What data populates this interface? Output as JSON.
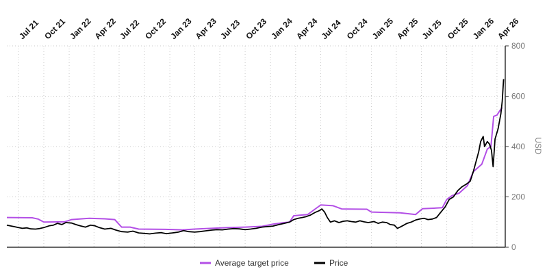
{
  "chart_data": {
    "type": "line",
    "title": "",
    "xlabel": "",
    "ylabel": "USD",
    "x_ticks": [
      "Jul 21",
      "Oct 21",
      "Jan 22",
      "Apr 22",
      "Jul 22",
      "Oct 22",
      "Jan 23",
      "Apr 23",
      "Jul 23",
      "Oct 23",
      "Jan 24",
      "Apr 24",
      "Jul 24",
      "Oct 24",
      "Jan 25",
      "Apr 25",
      "Jul 25",
      "Oct 25",
      "Jan 26",
      "Apr 26"
    ],
    "xlim": [
      "2021-05-20",
      "2026-05-01"
    ],
    "ylim": [
      0,
      800
    ],
    "y_ticks": [
      0,
      200,
      400,
      600,
      800
    ],
    "grid": true,
    "legend": "bottom-center",
    "series": [
      {
        "name": "Average target price",
        "color": "#b34fe6",
        "points": [
          [
            "2021-05-20",
            118
          ],
          [
            "2021-08-20",
            117
          ],
          [
            "2021-09-10",
            112
          ],
          [
            "2021-10-01",
            100
          ],
          [
            "2021-12-15",
            101
          ],
          [
            "2022-01-10",
            110
          ],
          [
            "2022-03-15",
            115
          ],
          [
            "2022-05-10",
            113
          ],
          [
            "2022-06-15",
            110
          ],
          [
            "2022-07-10",
            80
          ],
          [
            "2022-08-10",
            80
          ],
          [
            "2022-09-10",
            72
          ],
          [
            "2022-12-15",
            71
          ],
          [
            "2023-02-15",
            69
          ],
          [
            "2023-04-01",
            72
          ],
          [
            "2023-06-01",
            75
          ],
          [
            "2023-08-01",
            78
          ],
          [
            "2023-10-01",
            80
          ],
          [
            "2023-12-01",
            83
          ],
          [
            "2024-01-10",
            92
          ],
          [
            "2024-02-20",
            98
          ],
          [
            "2024-03-10",
            100
          ],
          [
            "2024-03-25",
            125
          ],
          [
            "2024-04-15",
            127
          ],
          [
            "2024-05-15",
            130
          ],
          [
            "2024-06-15",
            155
          ],
          [
            "2024-07-01",
            168
          ],
          [
            "2024-08-15",
            165
          ],
          [
            "2024-09-15",
            152
          ],
          [
            "2024-12-15",
            151
          ],
          [
            "2025-01-01",
            140
          ],
          [
            "2025-04-15",
            137
          ],
          [
            "2025-06-10",
            130
          ],
          [
            "2025-07-05",
            153
          ],
          [
            "2025-08-15",
            155
          ],
          [
            "2025-09-15",
            157
          ],
          [
            "2025-10-01",
            190
          ],
          [
            "2025-10-20",
            205
          ],
          [
            "2025-11-15",
            215
          ],
          [
            "2025-12-15",
            245
          ],
          [
            "2026-01-05",
            300
          ],
          [
            "2026-02-05",
            330
          ],
          [
            "2026-02-25",
            390
          ],
          [
            "2026-03-10",
            400
          ],
          [
            "2026-03-20",
            520
          ],
          [
            "2026-04-01",
            525
          ],
          [
            "2026-04-10",
            540
          ],
          [
            "2026-04-20",
            555
          ]
        ]
      },
      {
        "name": "Price",
        "color": "#000000",
        "points": [
          [
            "2021-05-20",
            88
          ],
          [
            "2021-06-01",
            85
          ],
          [
            "2021-06-15",
            82
          ],
          [
            "2021-07-01",
            78
          ],
          [
            "2021-07-15",
            75
          ],
          [
            "2021-08-01",
            77
          ],
          [
            "2021-08-15",
            73
          ],
          [
            "2021-09-01",
            72
          ],
          [
            "2021-09-15",
            74
          ],
          [
            "2021-10-01",
            78
          ],
          [
            "2021-10-20",
            85
          ],
          [
            "2021-11-05",
            88
          ],
          [
            "2021-11-20",
            95
          ],
          [
            "2021-12-05",
            90
          ],
          [
            "2021-12-20",
            98
          ],
          [
            "2022-01-10",
            96
          ],
          [
            "2022-01-25",
            90
          ],
          [
            "2022-02-10",
            85
          ],
          [
            "2022-03-01",
            80
          ],
          [
            "2022-03-20",
            88
          ],
          [
            "2022-04-05",
            85
          ],
          [
            "2022-04-20",
            78
          ],
          [
            "2022-05-10",
            72
          ],
          [
            "2022-06-01",
            75
          ],
          [
            "2022-06-20",
            68
          ],
          [
            "2022-07-10",
            62
          ],
          [
            "2022-08-01",
            60
          ],
          [
            "2022-08-20",
            64
          ],
          [
            "2022-09-10",
            57
          ],
          [
            "2022-10-01",
            55
          ],
          [
            "2022-10-20",
            53
          ],
          [
            "2022-11-10",
            56
          ],
          [
            "2022-12-01",
            58
          ],
          [
            "2022-12-20",
            54
          ],
          [
            "2023-01-10",
            57
          ],
          [
            "2023-02-01",
            60
          ],
          [
            "2023-02-20",
            66
          ],
          [
            "2023-03-10",
            62
          ],
          [
            "2023-04-01",
            60
          ],
          [
            "2023-04-20",
            62
          ],
          [
            "2023-05-10",
            65
          ],
          [
            "2023-06-01",
            68
          ],
          [
            "2023-06-20",
            70
          ],
          [
            "2023-07-10",
            69
          ],
          [
            "2023-08-01",
            72
          ],
          [
            "2023-08-20",
            74
          ],
          [
            "2023-09-10",
            73
          ],
          [
            "2023-10-01",
            70
          ],
          [
            "2023-10-20",
            72
          ],
          [
            "2023-11-10",
            75
          ],
          [
            "2023-12-01",
            80
          ],
          [
            "2023-12-20",
            82
          ],
          [
            "2024-01-10",
            84
          ],
          [
            "2024-02-01",
            90
          ],
          [
            "2024-02-20",
            95
          ],
          [
            "2024-03-10",
            100
          ],
          [
            "2024-03-25",
            110
          ],
          [
            "2024-04-10",
            115
          ],
          [
            "2024-04-25",
            118
          ],
          [
            "2024-05-10",
            122
          ],
          [
            "2024-05-25",
            128
          ],
          [
            "2024-06-10",
            138
          ],
          [
            "2024-06-25",
            145
          ],
          [
            "2024-07-05",
            152
          ],
          [
            "2024-07-15",
            140
          ],
          [
            "2024-07-25",
            118
          ],
          [
            "2024-08-05",
            100
          ],
          [
            "2024-08-20",
            105
          ],
          [
            "2024-09-05",
            98
          ],
          [
            "2024-09-20",
            103
          ],
          [
            "2024-10-05",
            105
          ],
          [
            "2024-10-20",
            102
          ],
          [
            "2024-11-05",
            100
          ],
          [
            "2024-11-20",
            105
          ],
          [
            "2024-12-05",
            101
          ],
          [
            "2024-12-20",
            98
          ],
          [
            "2025-01-10",
            102
          ],
          [
            "2025-01-25",
            95
          ],
          [
            "2025-02-10",
            100
          ],
          [
            "2025-02-25",
            98
          ],
          [
            "2025-03-10",
            90
          ],
          [
            "2025-03-25",
            88
          ],
          [
            "2025-04-05",
            75
          ],
          [
            "2025-04-15",
            80
          ],
          [
            "2025-04-25",
            86
          ],
          [
            "2025-05-10",
            95
          ],
          [
            "2025-05-25",
            100
          ],
          [
            "2025-06-10",
            108
          ],
          [
            "2025-06-25",
            112
          ],
          [
            "2025-07-10",
            115
          ],
          [
            "2025-07-25",
            110
          ],
          [
            "2025-08-10",
            112
          ],
          [
            "2025-08-25",
            118
          ],
          [
            "2025-09-10",
            140
          ],
          [
            "2025-09-25",
            160
          ],
          [
            "2025-10-10",
            190
          ],
          [
            "2025-10-25",
            200
          ],
          [
            "2025-11-10",
            225
          ],
          [
            "2025-11-25",
            240
          ],
          [
            "2025-12-10",
            250
          ],
          [
            "2025-12-25",
            262
          ],
          [
            "2026-01-05",
            300
          ],
          [
            "2026-01-15",
            340
          ],
          [
            "2026-01-25",
            380
          ],
          [
            "2026-02-01",
            420
          ],
          [
            "2026-02-10",
            440
          ],
          [
            "2026-02-15",
            400
          ],
          [
            "2026-02-25",
            420
          ],
          [
            "2026-03-05",
            410
          ],
          [
            "2026-03-12",
            385
          ],
          [
            "2026-03-18",
            320
          ],
          [
            "2026-03-25",
            430
          ],
          [
            "2026-04-05",
            470
          ],
          [
            "2026-04-15",
            530
          ],
          [
            "2026-04-20",
            580
          ],
          [
            "2026-04-25",
            668
          ]
        ]
      }
    ]
  }
}
